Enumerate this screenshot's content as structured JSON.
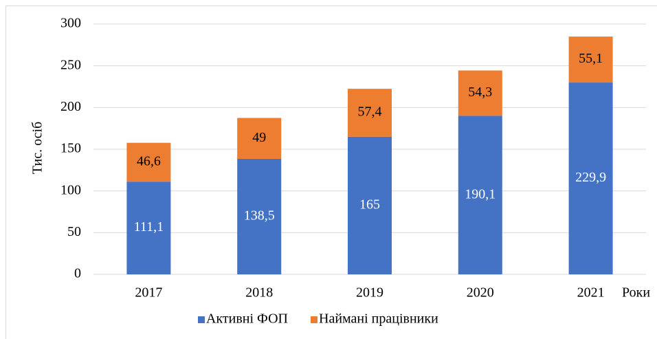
{
  "chart_data": {
    "type": "stacked_bar",
    "y_label": "Тис. осіб",
    "x_label": "Роки",
    "categories": [
      "2017",
      "2018",
      "2019",
      "2020",
      "2021"
    ],
    "series": [
      {
        "name": "Активні ФОП",
        "color": "#4472c4",
        "label_color": "#ffffff",
        "values": [
          111.1,
          138.5,
          165,
          190.1,
          229.9
        ],
        "value_labels": [
          "111,1",
          "138,5",
          "165",
          "190,1",
          "229,9"
        ]
      },
      {
        "name": "Наймані працівники",
        "color": "#ed7d31",
        "label_color": "#000000",
        "values": [
          46.6,
          49,
          57.4,
          54.3,
          55.1
        ],
        "value_labels": [
          "46,6",
          "49",
          "57,4",
          "54,3",
          "55,1"
        ]
      }
    ],
    "ylim": [
      0,
      300
    ],
    "yticks": [
      0,
      50,
      100,
      150,
      200,
      250,
      300
    ],
    "grid": true,
    "legend": "bottom"
  }
}
